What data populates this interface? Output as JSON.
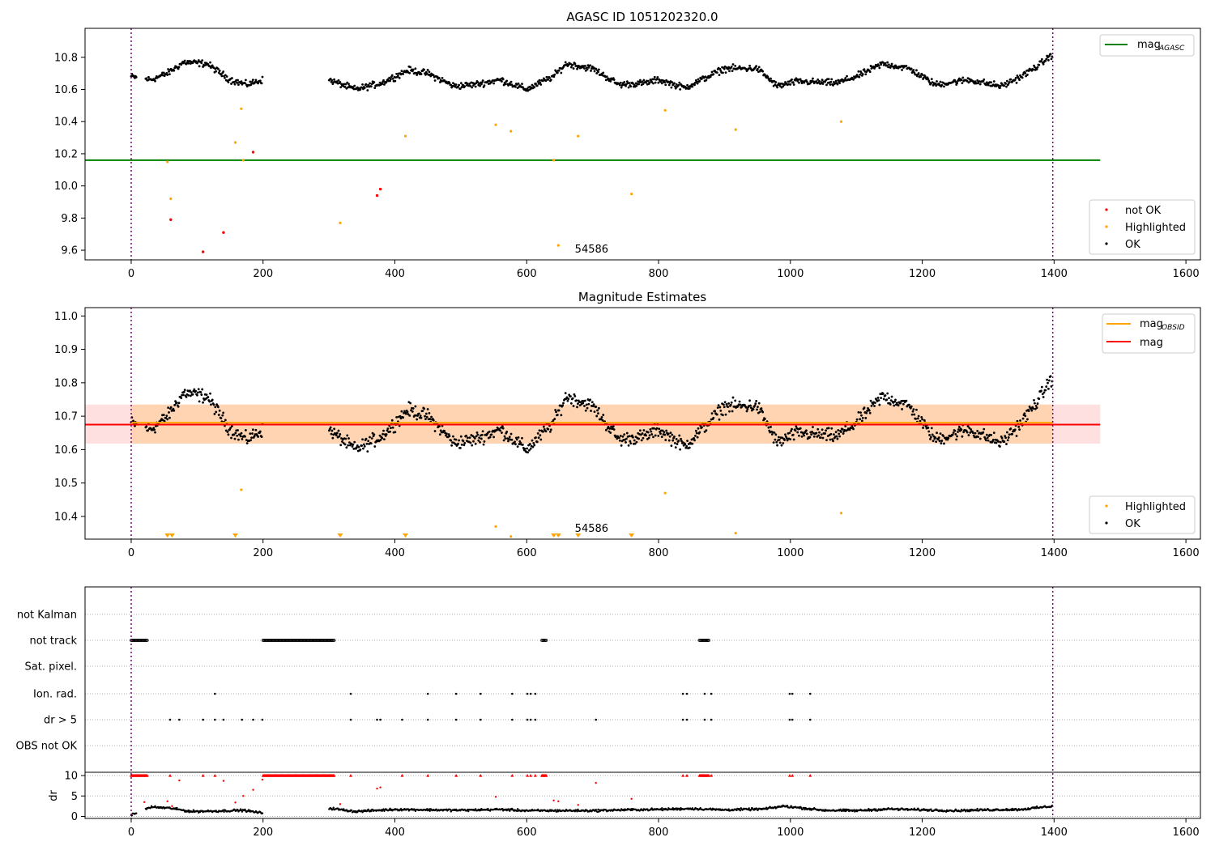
{
  "colors": {
    "ok": "#000000",
    "highlighted": "#ffa500",
    "not_ok": "#ff0000",
    "mag_agasc": "#008000",
    "mag_obsid": "#ffa500",
    "mag": "#ff0000",
    "obs_line": "#800080",
    "grid": "#b0b0b0"
  },
  "chart_data": [
    {
      "type": "scatter",
      "title": "AGASC ID 1051202320.0",
      "xlim": [
        -70,
        1622
      ],
      "ylim": [
        9.54,
        10.98
      ],
      "x_ticks": [
        0,
        200,
        400,
        600,
        800,
        1000,
        1200,
        1400,
        1600
      ],
      "x_tick_labels": [
        "0",
        "200",
        "400",
        "600",
        "800",
        "1000",
        "1200",
        "1400",
        "1600"
      ],
      "y_ticks": [
        9.6,
        9.8,
        10.0,
        10.2,
        10.4,
        10.6,
        10.8
      ],
      "y_tick_labels": [
        "9.6",
        "9.8",
        "10.0",
        "10.2",
        "10.4",
        "10.6",
        "10.8"
      ],
      "obs_boundaries": [
        0,
        1398
      ],
      "obs_label": "54586",
      "obs_label_x": 673,
      "mag_agasc": 10.16,
      "mag_agasc_xrange": [
        -70,
        1470
      ],
      "legend_lines": [
        {
          "name": "mag",
          "sub": "AGASC",
          "color_key": "mag_agasc"
        }
      ],
      "legend_lines_placement": "upper right",
      "legend_points": [
        {
          "name": "not OK",
          "color_key": "not_ok"
        },
        {
          "name": "Highlighted",
          "color_key": "highlighted"
        },
        {
          "name": "OK",
          "color_key": "ok"
        }
      ],
      "legend_points_placement": "lower right",
      "ok_series": {
        "x_range": [
          0,
          1398
        ],
        "gaps": [
          [
            25,
            15
          ],
          [
            200,
            100
          ],
          [
            8,
            5
          ]
        ],
        "curve": [
          [
            0,
            10.68
          ],
          [
            30,
            10.66
          ],
          [
            55,
            10.7
          ],
          [
            80,
            10.77
          ],
          [
            115,
            10.76
          ],
          [
            150,
            10.66
          ],
          [
            175,
            10.63
          ],
          [
            200,
            10.66
          ],
          [
            300,
            10.66
          ],
          [
            340,
            10.6
          ],
          [
            380,
            10.64
          ],
          [
            420,
            10.72
          ],
          [
            450,
            10.7
          ],
          [
            490,
            10.62
          ],
          [
            520,
            10.63
          ],
          [
            560,
            10.66
          ],
          [
            600,
            10.6
          ],
          [
            640,
            10.68
          ],
          [
            660,
            10.76
          ],
          [
            700,
            10.73
          ],
          [
            740,
            10.63
          ],
          [
            780,
            10.64
          ],
          [
            800,
            10.66
          ],
          [
            840,
            10.61
          ],
          [
            870,
            10.67
          ],
          [
            900,
            10.73
          ],
          [
            950,
            10.73
          ],
          [
            980,
            10.62
          ],
          [
            1010,
            10.65
          ],
          [
            1070,
            10.64
          ],
          [
            1100,
            10.68
          ],
          [
            1140,
            10.76
          ],
          [
            1180,
            10.73
          ],
          [
            1220,
            10.63
          ],
          [
            1270,
            10.66
          ],
          [
            1320,
            10.62
          ],
          [
            1350,
            10.68
          ],
          [
            1380,
            10.76
          ],
          [
            1398,
            10.82
          ]
        ],
        "noise": 0.03
      },
      "highlighted_points": [
        [
          55,
          10.15
        ],
        [
          60,
          9.92
        ],
        [
          158,
          10.27
        ],
        [
          167,
          10.48
        ],
        [
          170,
          10.16
        ],
        [
          317,
          9.77
        ],
        [
          416,
          10.31
        ],
        [
          553,
          10.38
        ],
        [
          576,
          10.34
        ],
        [
          641,
          10.16
        ],
        [
          648,
          9.63
        ],
        [
          678,
          10.31
        ],
        [
          759,
          9.95
        ],
        [
          810,
          10.47
        ],
        [
          917,
          10.35
        ],
        [
          1077,
          10.4
        ]
      ],
      "not_ok_points": [
        [
          60,
          9.79
        ],
        [
          109,
          9.59
        ],
        [
          140,
          9.71
        ],
        [
          185,
          10.21
        ],
        [
          373,
          9.94
        ],
        [
          378,
          9.98
        ]
      ]
    },
    {
      "type": "scatter",
      "title": "Magnitude Estimates",
      "xlim": [
        -70,
        1622
      ],
      "ylim": [
        10.332,
        11.025
      ],
      "x_ticks": [
        0,
        200,
        400,
        600,
        800,
        1000,
        1200,
        1400,
        1600
      ],
      "x_tick_labels": [
        "0",
        "200",
        "400",
        "600",
        "800",
        "1000",
        "1200",
        "1400",
        "1600"
      ],
      "y_ticks": [
        10.4,
        10.5,
        10.6,
        10.7,
        10.8,
        10.9,
        11.0
      ],
      "y_tick_labels": [
        "10.4",
        "10.5",
        "10.6",
        "10.7",
        "10.8",
        "10.9",
        "11.0"
      ],
      "obs_boundaries": [
        0,
        1398
      ],
      "obs_label": "54586",
      "obs_label_x": 673,
      "mag": 10.675,
      "mag_band": [
        10.618,
        10.735
      ],
      "mag_obsid": 10.677,
      "mag_obsid_band": [
        10.618,
        10.735
      ],
      "lines_xrange": [
        -70,
        1470
      ],
      "obsid_xrange": [
        0,
        1398
      ],
      "legend_lines": [
        {
          "name": "mag",
          "sub": "OBSID",
          "color_key": "mag_obsid"
        },
        {
          "name": "mag",
          "sub": "",
          "color_key": "mag"
        }
      ],
      "legend_lines_placement": "upper right",
      "legend_points": [
        {
          "name": "Highlighted",
          "color_key": "highlighted"
        },
        {
          "name": "OK",
          "color_key": "ok"
        }
      ],
      "legend_points_placement": "lower right",
      "ok_series": "same as panel 1",
      "highlighted_points": [
        [
          167,
          10.48
        ],
        [
          553,
          10.37
        ],
        [
          576,
          10.34
        ],
        [
          810,
          10.47
        ],
        [
          917,
          10.35
        ],
        [
          1077,
          10.41
        ]
      ],
      "lower_limit_markers": [
        55,
        62,
        158,
        317,
        416,
        641,
        648,
        678,
        759
      ]
    },
    {
      "type": "scatter",
      "title": "",
      "xlim": [
        -70,
        1622
      ],
      "x_ticks": [
        0,
        200,
        400,
        600,
        800,
        1000,
        1200,
        1400,
        1600
      ],
      "x_tick_labels": [
        "0",
        "200",
        "400",
        "600",
        "800",
        "1000",
        "1200",
        "1400",
        "1600"
      ],
      "flag_rows": [
        "not Kalman",
        "not track",
        "Sat. pixel.",
        "Ion. rad.",
        "dr > 5",
        "OBS not OK"
      ],
      "flags": {
        "not track": {
          "ranges": [
            [
              0,
              25
            ],
            [
              200,
              308
            ],
            [
              623,
              630
            ],
            [
              862,
              877
            ]
          ]
        },
        "Ion. rad.": {
          "points": [
            127,
            333,
            450,
            493,
            530,
            578,
            601,
            606,
            613,
            837,
            843,
            870,
            880,
            999,
            1003,
            1030
          ]
        },
        "dr > 5": {
          "points": [
            59,
            73,
            109,
            127,
            140,
            168,
            185,
            199,
            333,
            373,
            378,
            411,
            450,
            493,
            530,
            578,
            601,
            606,
            613,
            705,
            837,
            843,
            870,
            880,
            999,
            1003,
            1030
          ]
        }
      },
      "dr_subplot": {
        "ylabel": "dr",
        "ylim": [
          -0.5,
          10.8
        ],
        "y_ticks": [
          0,
          5,
          10
        ],
        "y_tick_labels": [
          "0",
          "5",
          "10"
        ],
        "clip_value": 10,
        "clipped_ranges": [
          [
            0,
            25
          ],
          [
            200,
            308
          ],
          [
            623,
            630
          ],
          [
            862,
            877
          ]
        ],
        "clipped_points": [
          59,
          109,
          127,
          333,
          411,
          450,
          493,
          530,
          578,
          601,
          606,
          613,
          837,
          843,
          880,
          999,
          1003,
          1030
        ],
        "red_points": [
          [
            20,
            3.5
          ],
          [
            55,
            3.7
          ],
          [
            62,
            2.5
          ],
          [
            73,
            8.8
          ],
          [
            140,
            8.7
          ],
          [
            158,
            3.4
          ],
          [
            170,
            5.0
          ],
          [
            185,
            6.5
          ],
          [
            199,
            9.0
          ],
          [
            317,
            3.0
          ],
          [
            373,
            6.8
          ],
          [
            378,
            7.1
          ],
          [
            553,
            4.8
          ],
          [
            641,
            3.9
          ],
          [
            648,
            3.7
          ],
          [
            678,
            2.8
          ],
          [
            705,
            8.2
          ],
          [
            759,
            4.3
          ]
        ],
        "black_curve": [
          [
            0,
            0.3
          ],
          [
            30,
            2.3
          ],
          [
            60,
            2.0
          ],
          [
            90,
            1.2
          ],
          [
            130,
            1.3
          ],
          [
            170,
            1.5
          ],
          [
            199,
            0.8
          ],
          [
            300,
            2.0
          ],
          [
            340,
            1.2
          ],
          [
            400,
            1.7
          ],
          [
            450,
            1.6
          ],
          [
            500,
            1.5
          ],
          [
            560,
            1.7
          ],
          [
            600,
            1.4
          ],
          [
            650,
            1.4
          ],
          [
            700,
            1.4
          ],
          [
            750,
            1.6
          ],
          [
            800,
            1.7
          ],
          [
            850,
            1.9
          ],
          [
            900,
            1.6
          ],
          [
            960,
            1.8
          ],
          [
            990,
            2.5
          ],
          [
            1050,
            1.5
          ],
          [
            1100,
            1.4
          ],
          [
            1150,
            1.8
          ],
          [
            1200,
            1.6
          ],
          [
            1250,
            1.4
          ],
          [
            1300,
            1.6
          ],
          [
            1350,
            1.7
          ],
          [
            1398,
            2.5
          ]
        ]
      }
    }
  ]
}
